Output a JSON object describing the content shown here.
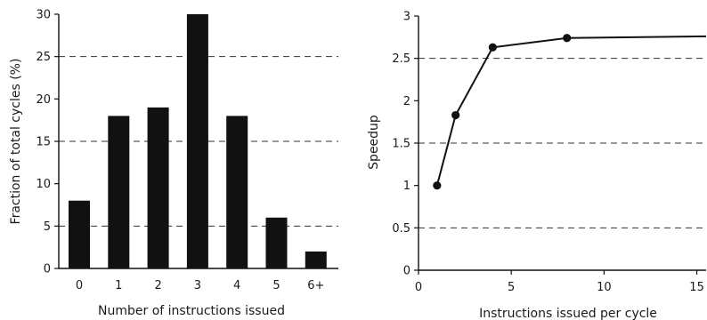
{
  "chart_data": [
    {
      "type": "bar",
      "xlabel": "Number of instructions issued",
      "ylabel": "Fraction of total cycles (%)",
      "categories": [
        "0",
        "1",
        "2",
        "3",
        "4",
        "5",
        "6+"
      ],
      "values": [
        8,
        18,
        19,
        30,
        18,
        6,
        2
      ],
      "ylim": [
        0,
        30
      ],
      "yticks": [
        0,
        5,
        10,
        15,
        20,
        25,
        30
      ],
      "ytick_labels": [
        "0",
        "5",
        "10",
        "15",
        "20",
        "25",
        "30"
      ],
      "grid": "dashed horizontal at 5, 15, 25",
      "bar_color": "#111111"
    },
    {
      "type": "line",
      "xlabel": "Instructions issued per cycle",
      "ylabel": "Speedup",
      "series": [
        {
          "x": [
            1,
            2,
            4,
            8,
            15.5
          ],
          "y": [
            1.0,
            1.83,
            2.63,
            2.74,
            2.76
          ],
          "markers_at": [
            1,
            2,
            4,
            8
          ]
        }
      ],
      "xlim": [
        0,
        15.5
      ],
      "ylim": [
        0,
        3
      ],
      "xticks": [
        0,
        5,
        10,
        15
      ],
      "xtick_labels": [
        "0",
        "5",
        "10",
        "15"
      ],
      "yticks": [
        0,
        0.5,
        1,
        1.5,
        2,
        2.5,
        3
      ],
      "ytick_labels": [
        "0",
        "0.5",
        "1",
        "1.5",
        "2",
        "2.5",
        "3"
      ],
      "grid": "dashed horizontal at 0.5, 1.5, 2.5",
      "line_color": "#111111"
    }
  ]
}
